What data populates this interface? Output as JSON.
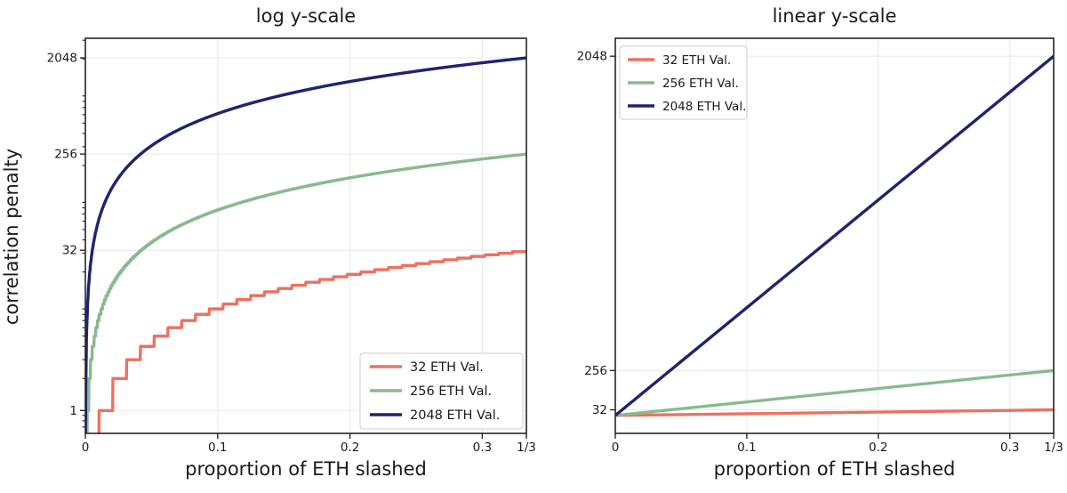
{
  "figure": {
    "background": "#ffffff",
    "style": {
      "text_color": "#1a1a1a",
      "spine_color": "#262626",
      "grid_color": "#e8e8e8",
      "legend_border_color": "#cccccc",
      "legend_background": "rgba(255,255,255,0.88)"
    }
  },
  "chart_data": [
    {
      "type": "line",
      "title": "log y-scale",
      "xlabel": "proportion of ETH slashed",
      "ylabel": "correlation penalty",
      "yscale": "log",
      "grid": true,
      "xlim": [
        0,
        0.33333333333333
      ],
      "ylim": [
        0.61,
        3130
      ],
      "xticks": [
        {
          "v": 0,
          "label": "0"
        },
        {
          "v": 0.1,
          "label": "0.1"
        },
        {
          "v": 0.2,
          "label": "0.2"
        },
        {
          "v": 0.3,
          "label": "0.3"
        },
        {
          "v": 0.33333333333333,
          "label": "1/3"
        }
      ],
      "yticks": [
        {
          "v": 1,
          "label": "1"
        },
        {
          "v": 32,
          "label": "32"
        },
        {
          "v": 256,
          "label": "256"
        },
        {
          "v": 2048,
          "label": "2048"
        }
      ],
      "yticks_minor": [
        0.7,
        0.8,
        0.9,
        2,
        3,
        4,
        5,
        6,
        7,
        8,
        9,
        20,
        30,
        40,
        50,
        60,
        70,
        80,
        90,
        200,
        300,
        400,
        500,
        600,
        700,
        800,
        900,
        2000,
        3000
      ],
      "legend": {
        "position": "lower right",
        "entries": [
          {
            "label": "32 ETH Val.",
            "color": "#ED7161"
          },
          {
            "label": "256 ETH Val.",
            "color": "#88BA8E"
          },
          {
            "label": "2048 ETH Val.",
            "color": "#1F2370"
          }
        ]
      },
      "series": [
        {
          "name": "32 ETH Val.",
          "color": "#ED7161",
          "validator_balance_eth": 32,
          "slope_multiplier": 3,
          "quantize_step_eth": 1,
          "y_start": 0,
          "y_end": 32
        },
        {
          "name": "256 ETH Val.",
          "color": "#88BA8E",
          "validator_balance_eth": 256,
          "slope_multiplier": 3,
          "quantize_step_eth": 1,
          "y_start": 0,
          "y_end": 256
        },
        {
          "name": "2048 ETH Val.",
          "color": "#1F2370",
          "validator_balance_eth": 2048,
          "slope_multiplier": 3,
          "quantize_step_eth": 1,
          "y_start": 0,
          "y_end": 2048
        }
      ]
    },
    {
      "type": "line",
      "title": "linear y-scale",
      "xlabel": "proportion of ETH slashed",
      "ylabel": "",
      "yscale": "linear",
      "grid": true,
      "xlim": [
        0,
        0.33333333333333
      ],
      "ylim": [
        -102.4,
        2150.4
      ],
      "xticks": [
        {
          "v": 0,
          "label": "0"
        },
        {
          "v": 0.1,
          "label": "0.1"
        },
        {
          "v": 0.2,
          "label": "0.2"
        },
        {
          "v": 0.3,
          "label": "0.3"
        },
        {
          "v": 0.33333333333333,
          "label": "1/3"
        }
      ],
      "yticks": [
        {
          "v": 32,
          "label": "32"
        },
        {
          "v": 256,
          "label": "256"
        },
        {
          "v": 2048,
          "label": "2048"
        }
      ],
      "yticks_minor": [],
      "legend": {
        "position": "upper left",
        "entries": [
          {
            "label": "32 ETH Val.",
            "color": "#ED7161"
          },
          {
            "label": "256 ETH Val.",
            "color": "#88BA8E"
          },
          {
            "label": "2048 ETH Val.",
            "color": "#1F2370"
          }
        ]
      },
      "series": [
        {
          "name": "32 ETH Val.",
          "color": "#ED7161",
          "validator_balance_eth": 32,
          "slope_multiplier": 3,
          "quantize_step_eth": 0,
          "y_start": 0,
          "y_end": 32
        },
        {
          "name": "256 ETH Val.",
          "color": "#88BA8E",
          "validator_balance_eth": 256,
          "slope_multiplier": 3,
          "quantize_step_eth": 0,
          "y_start": 0,
          "y_end": 256
        },
        {
          "name": "2048 ETH Val.",
          "color": "#1F2370",
          "validator_balance_eth": 2048,
          "slope_multiplier": 3,
          "quantize_step_eth": 0,
          "y_start": 0,
          "y_end": 2048
        }
      ]
    }
  ]
}
